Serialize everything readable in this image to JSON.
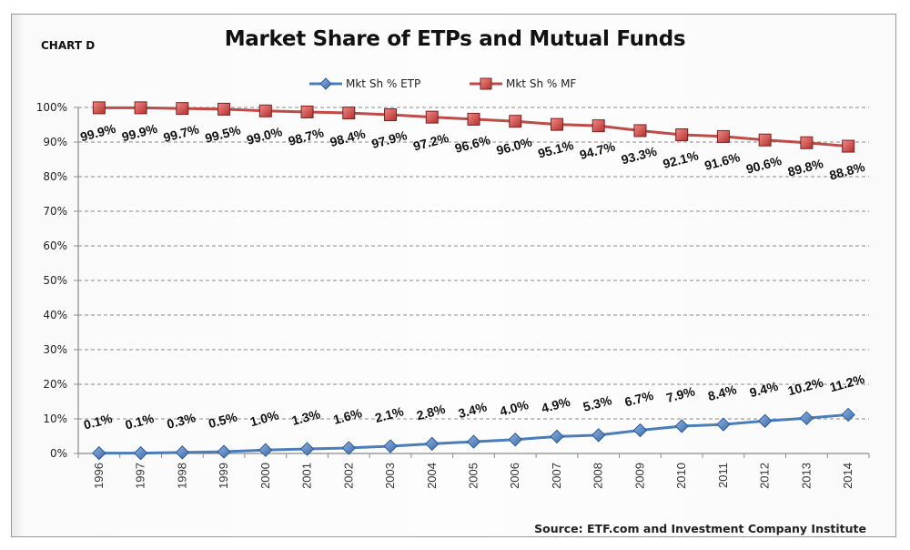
{
  "chart_data": {
    "type": "line",
    "corner_label": "CHART D",
    "title": "Market Share of ETPs and Mutual Funds",
    "source": "Source: ETF.com and Investment Company Institute",
    "xlabel": "",
    "ylabel": "",
    "x": [
      "1996",
      "1997",
      "1998",
      "1999",
      "2000",
      "2001",
      "2002",
      "2003",
      "2004",
      "2005",
      "2006",
      "2007",
      "2008",
      "2009",
      "2010",
      "2011",
      "2012",
      "2013",
      "2014"
    ],
    "ylim": [
      0,
      100
    ],
    "yticks": [
      "0%",
      "10%",
      "20%",
      "30%",
      "40%",
      "50%",
      "60%",
      "70%",
      "80%",
      "90%",
      "100%"
    ],
    "grid": "horizontal-dashed",
    "legend_position": "top-center",
    "series": [
      {
        "name": "Mkt Sh % ETP",
        "color": "#4a7ebb",
        "marker": "diamond",
        "values": [
          0.1,
          0.1,
          0.3,
          0.5,
          1.0,
          1.3,
          1.6,
          2.1,
          2.8,
          3.4,
          4.0,
          4.9,
          5.3,
          6.7,
          7.9,
          8.4,
          9.4,
          10.2,
          11.2
        ],
        "labels": [
          "0.1%",
          "0.1%",
          "0.3%",
          "0.5%",
          "1.0%",
          "1.3%",
          "1.6%",
          "2.1%",
          "2.8%",
          "3.4%",
          "4.0%",
          "4.9%",
          "5.3%",
          "6.7%",
          "7.9%",
          "8.4%",
          "9.4%",
          "10.2%",
          "11.2%"
        ]
      },
      {
        "name": "Mkt Sh % MF",
        "color": "#be4b48",
        "marker": "square",
        "values": [
          99.9,
          99.9,
          99.7,
          99.5,
          99.0,
          98.7,
          98.4,
          97.9,
          97.2,
          96.6,
          96.0,
          95.1,
          94.7,
          93.3,
          92.1,
          91.6,
          90.6,
          89.8,
          88.8
        ],
        "labels": [
          "99.9%",
          "99.9%",
          "99.7%",
          "99.5%",
          "99.0%",
          "98.7%",
          "98.4%",
          "97.9%",
          "97.2%",
          "96.6%",
          "96.0%",
          "95.1%",
          "94.7%",
          "93.3%",
          "92.1%",
          "91.6%",
          "90.6%",
          "89.8%",
          "88.8%"
        ]
      }
    ]
  }
}
